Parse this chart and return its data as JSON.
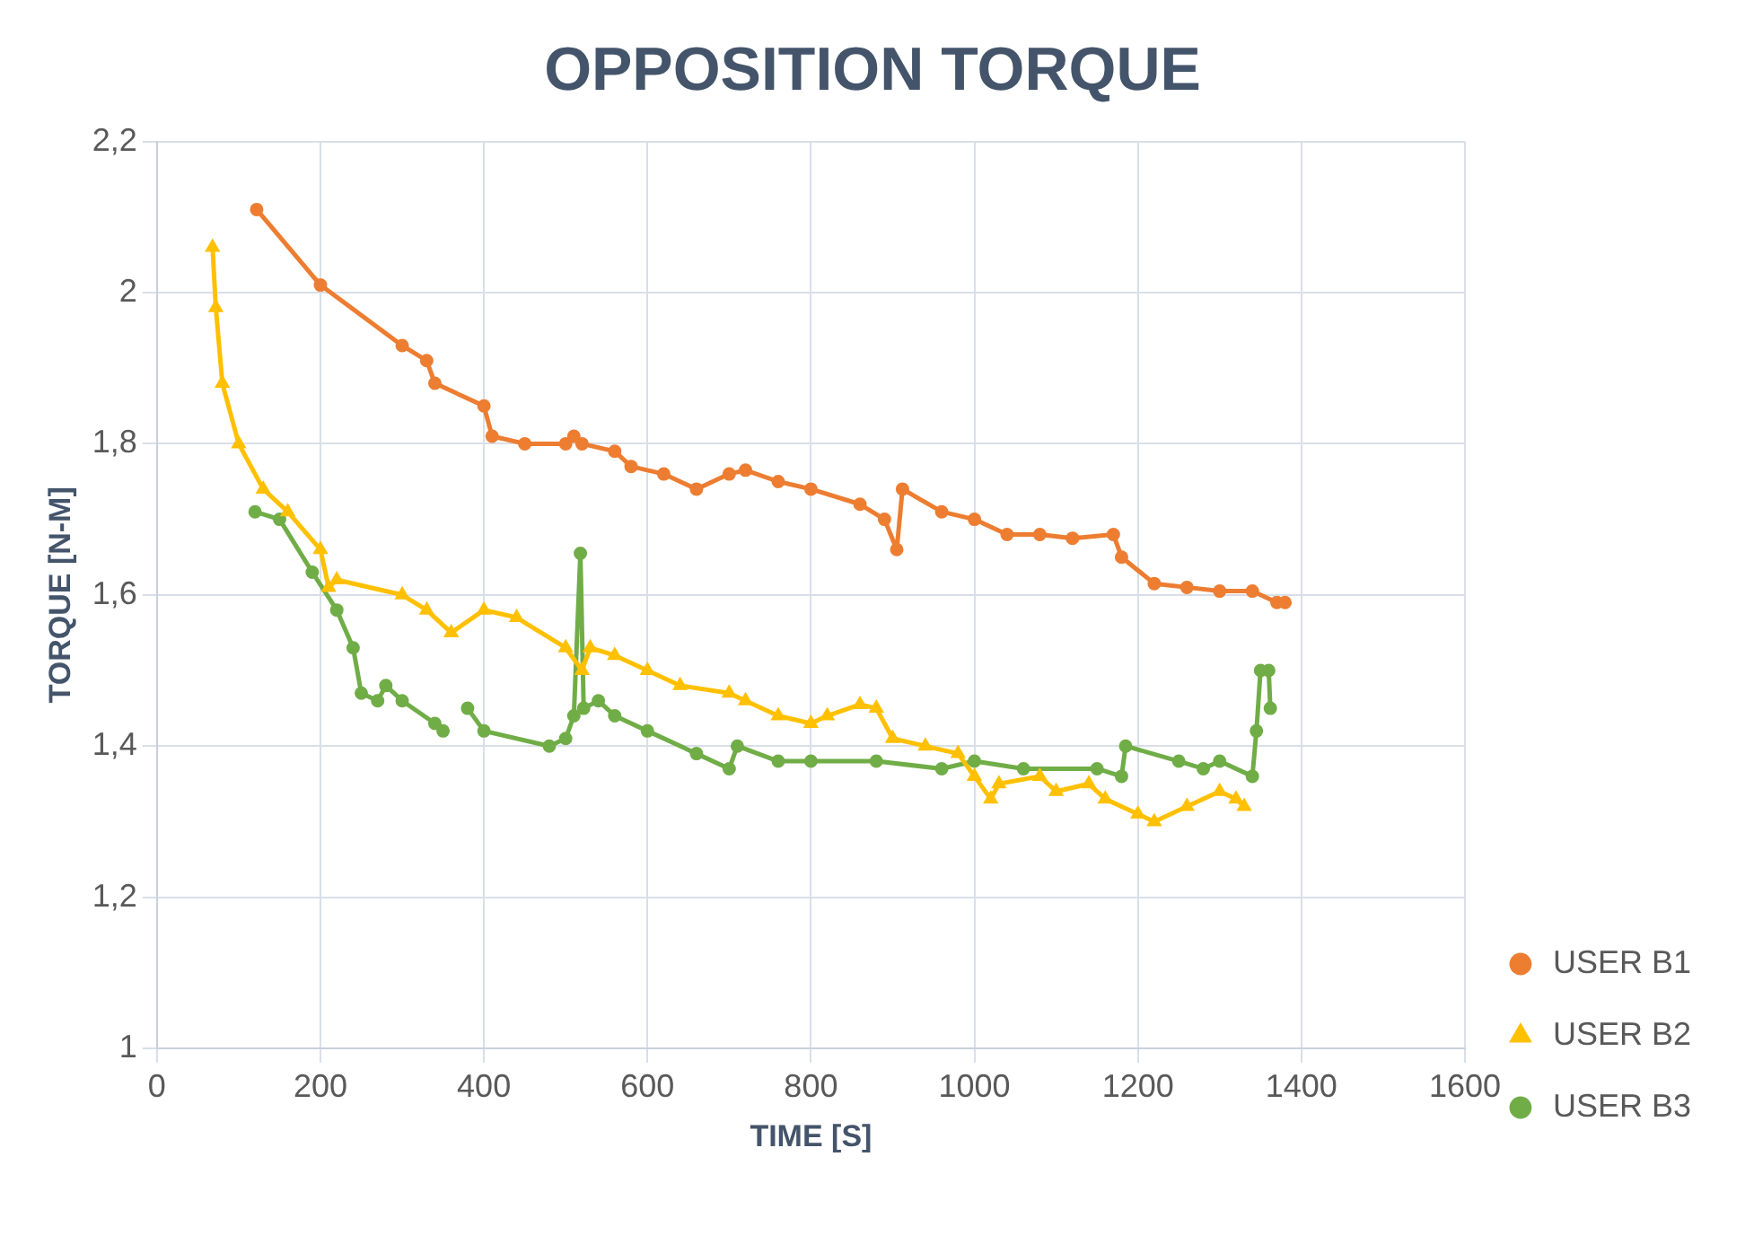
{
  "chart_data": {
    "type": "line",
    "title": "OPPOSITION TORQUE",
    "xlabel": "TIME [S]",
    "ylabel": "TORQUE [N-M]",
    "xlim": [
      0,
      1600
    ],
    "xticks": [
      0,
      200,
      400,
      600,
      800,
      1000,
      1200,
      1400,
      1600
    ],
    "ylim": [
      1,
      2.2
    ],
    "yticks": [
      {
        "value": 1,
        "label": "1"
      },
      {
        "value": 1.2,
        "label": "1,2"
      },
      {
        "value": 1.4,
        "label": "1,4"
      },
      {
        "value": 1.6,
        "label": "1,6"
      },
      {
        "value": 1.8,
        "label": "1,8"
      },
      {
        "value": 2,
        "label": "2"
      },
      {
        "value": 2.2,
        "label": "2,2"
      }
    ],
    "grid": true,
    "legend": "right",
    "line_style": "solid",
    "series": [
      {
        "name": "USER B1",
        "color": "#ed7d31",
        "marker": "circle",
        "x": [
          122,
          200,
          300,
          330,
          340,
          400,
          410,
          450,
          500,
          510,
          520,
          560,
          580,
          620,
          660,
          700,
          720,
          760,
          800,
          860,
          890,
          905,
          912,
          960,
          1000,
          1040,
          1080,
          1120,
          1170,
          1180,
          1220,
          1260,
          1300,
          1340,
          1370,
          1380
        ],
        "values": [
          2.11,
          2.01,
          1.93,
          1.91,
          1.88,
          1.85,
          1.81,
          1.8,
          1.8,
          1.81,
          1.8,
          1.79,
          1.77,
          1.76,
          1.74,
          1.76,
          1.765,
          1.75,
          1.74,
          1.72,
          1.7,
          1.66,
          1.74,
          1.71,
          1.7,
          1.68,
          1.68,
          1.675,
          1.68,
          1.65,
          1.615,
          1.61,
          1.605,
          1.605,
          1.59,
          1.59
        ]
      },
      {
        "name": "USER B2",
        "color": "#ffc000",
        "marker": "triangle",
        "x": [
          68,
          72,
          80,
          100,
          130,
          160,
          200,
          210,
          220,
          300,
          330,
          360,
          400,
          440,
          500,
          520,
          530,
          560,
          600,
          640,
          700,
          720,
          760,
          800,
          820,
          860,
          880,
          900,
          940,
          980,
          1000,
          1020,
          1030,
          1080,
          1100,
          1140,
          1160,
          1200,
          1220,
          1260,
          1300,
          1320,
          1330
        ],
        "values": [
          2.06,
          1.98,
          1.88,
          1.8,
          1.74,
          1.71,
          1.66,
          1.61,
          1.62,
          1.6,
          1.58,
          1.55,
          1.58,
          1.57,
          1.53,
          1.5,
          1.53,
          1.52,
          1.5,
          1.48,
          1.47,
          1.46,
          1.44,
          1.43,
          1.44,
          1.455,
          1.45,
          1.41,
          1.4,
          1.39,
          1.36,
          1.33,
          1.35,
          1.36,
          1.34,
          1.35,
          1.33,
          1.31,
          1.3,
          1.32,
          1.34,
          1.33,
          1.32
        ]
      },
      {
        "name": "USER B3",
        "color": "#70ad47",
        "marker": "circle",
        "x": [
          120,
          150,
          190,
          220,
          240,
          250,
          270,
          280,
          300,
          340,
          350,
          365,
          380,
          400,
          480,
          500,
          510,
          518,
          522,
          540,
          560,
          600,
          660,
          700,
          710,
          760,
          800,
          880,
          960,
          1000,
          1060,
          1150,
          1180,
          1185,
          1250,
          1280,
          1300,
          1340,
          1345,
          1350,
          1360,
          1362
        ],
        "values": [
          1.71,
          1.7,
          1.63,
          1.58,
          1.53,
          1.47,
          1.46,
          1.48,
          1.46,
          1.43,
          1.42,
          null,
          1.45,
          1.42,
          1.4,
          1.41,
          1.44,
          1.655,
          1.45,
          1.46,
          1.44,
          1.42,
          1.39,
          1.37,
          1.4,
          1.38,
          1.38,
          1.38,
          1.37,
          1.38,
          1.37,
          1.37,
          1.36,
          1.4,
          1.38,
          1.37,
          1.38,
          1.36,
          1.42,
          1.5,
          1.5,
          1.45
        ]
      }
    ]
  }
}
